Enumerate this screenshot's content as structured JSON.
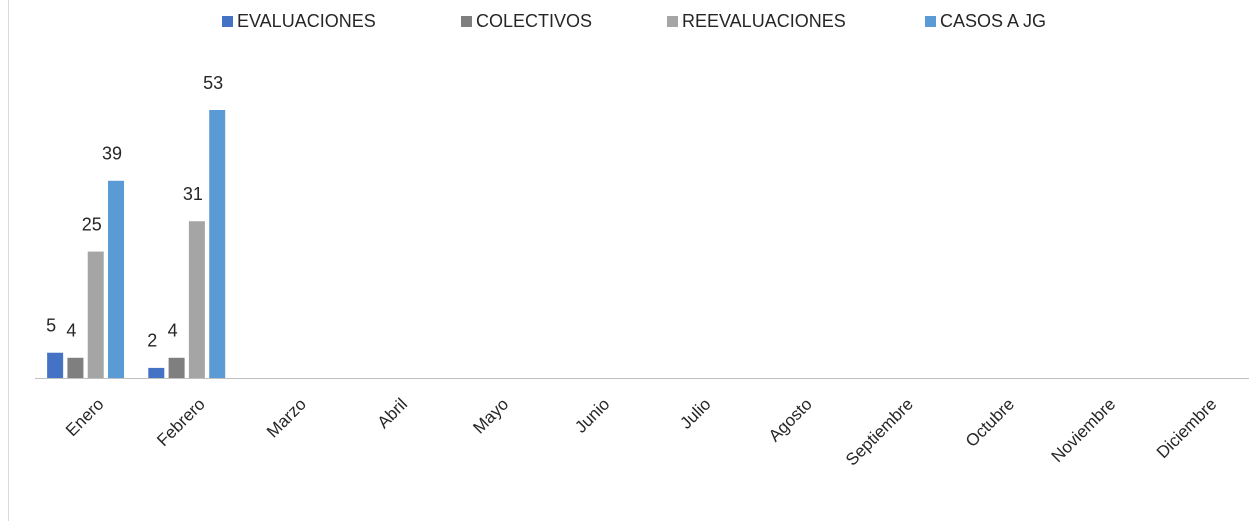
{
  "chart_data": {
    "type": "bar",
    "categories": [
      "Enero",
      "Febrero",
      "Marzo",
      "Abril",
      "Mayo",
      "Junio",
      "Julio",
      "Agosto",
      "Septiembre",
      "Octubre",
      "Noviembre",
      "Diciembre"
    ],
    "series": [
      {
        "name": "EVALUACIONES",
        "color": "#4472c4",
        "values": [
          5,
          2,
          null,
          null,
          null,
          null,
          null,
          null,
          null,
          null,
          null,
          null
        ]
      },
      {
        "name": "COLECTIVOS",
        "color": "#7f7f7f",
        "values": [
          4,
          4,
          null,
          null,
          null,
          null,
          null,
          null,
          null,
          null,
          null,
          null
        ]
      },
      {
        "name": "REEVALUACIONES",
        "color": "#a5a5a5",
        "values": [
          25,
          31,
          null,
          null,
          null,
          null,
          null,
          null,
          null,
          null,
          null,
          null
        ]
      },
      {
        "name": "CASOS A JG",
        "color": "#5b9bd5",
        "values": [
          39,
          53,
          null,
          null,
          null,
          null,
          null,
          null,
          null,
          null,
          null,
          null
        ]
      }
    ],
    "legend": "top"
  }
}
